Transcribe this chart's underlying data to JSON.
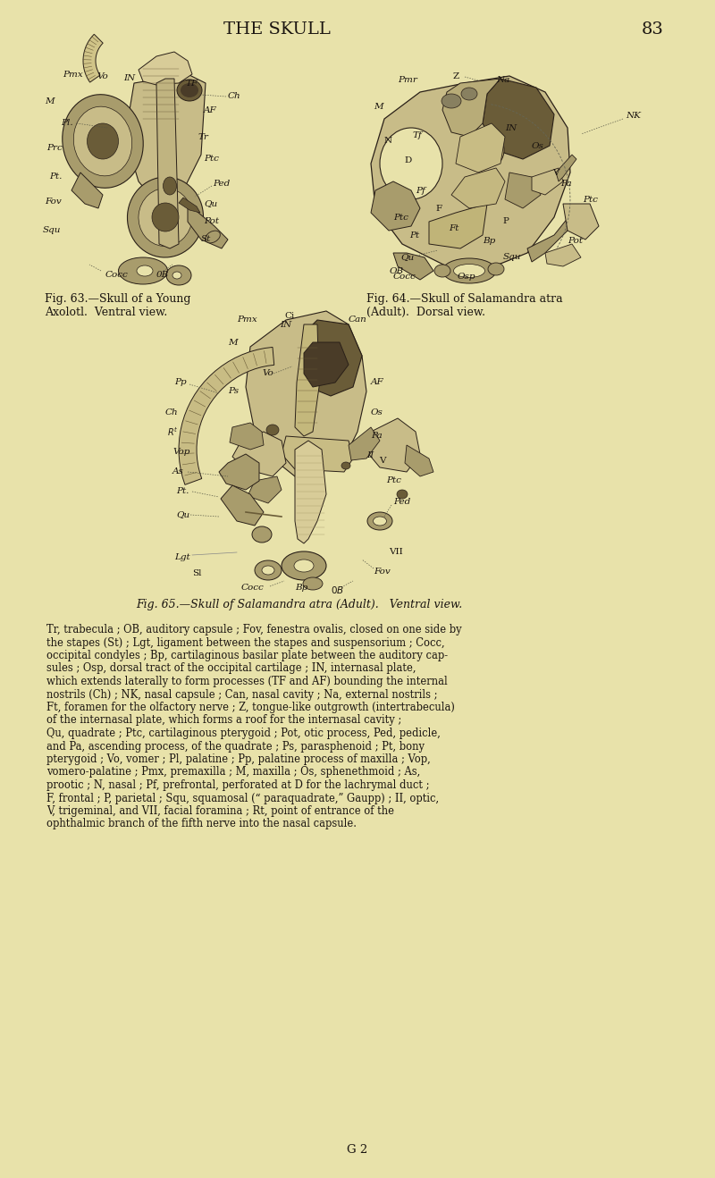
{
  "background_color": "#e8e2aa",
  "page_title": "THE SKULL",
  "page_number": "83",
  "title_fontsize": 14,
  "fig63_caption_line1": "Fig. 63.—Skull of a Young",
  "fig63_caption_line2": "Axolotl.  Ventral view.",
  "fig64_caption_line1": "Fig. 64.—Skull of Salamandra atra",
  "fig64_caption_line2": "(Adult).  Dorsal view.",
  "fig65_caption": "Fig. 65.—Skull of Salamandra atra (Adult).   Ventral view.",
  "body_text_lines": [
    "Tr, trabecula ; OB, auditory capsule ; Fov, fenestra ovalis, closed on one side by",
    "the stapes (St) ; Lgt, ligament between the stapes and suspensorium ; Cocc,",
    "occipital condyles ; Bp, cartilaginous basilar plate between the auditory cap-",
    "sules ; Osp, dorsal tract of the occipital cartilage ; IN, internasal plate,",
    "which extends laterally to form processes (TF and AF) bounding the internal",
    "nostrils (Ch) ; NK, nasal capsule ; Can, nasal cavity ; Na, external nostrils ;",
    "Ft, foramen for the olfactory nerve ; Z, tongue-like outgrowth (intertrabecula)",
    "of the internasal plate, which forms a roof for the internasal cavity ;",
    "Qu, quadrate ; Ptc, cartilaginous pterygoid ; Pot, otic process, Ped, pedicle,",
    "and Pa, ascending process, of the quadrate ; Ps, parasphenoid ; Pt, bony",
    "pterygoid ; Vo, vomer ; Pl, palatine ; Pp, palatine process of maxilla ; Vop,",
    "vomero-palatine ; Pmx, premaxilla ; M, maxilla ; Os, sphenethmoid ; As,",
    "prootic ; N, nasal ; Pf, prefrontal, perforated at D for the lachrymal duct ;",
    "F, frontal ; P, parietal ; Squ, squamosal (“ paraquadrate,” Gaupp) ; II, optic,",
    "V, trigeminal, and VII, facial foramina ; Rt, point of entrance of the",
    "ophthalmic branch of the fifth nerve into the nasal capsule."
  ],
  "footer": "G 2",
  "body_fontsize": 8.3,
  "caption_fontsize": 9.0,
  "bone_light": "#c8bc88",
  "bone_mid": "#a89c6c",
  "bone_dark": "#6a5c38",
  "bone_shadow": "#4a3c28",
  "outline_color": "#2a2018",
  "bg_color": "#e8e2aa"
}
